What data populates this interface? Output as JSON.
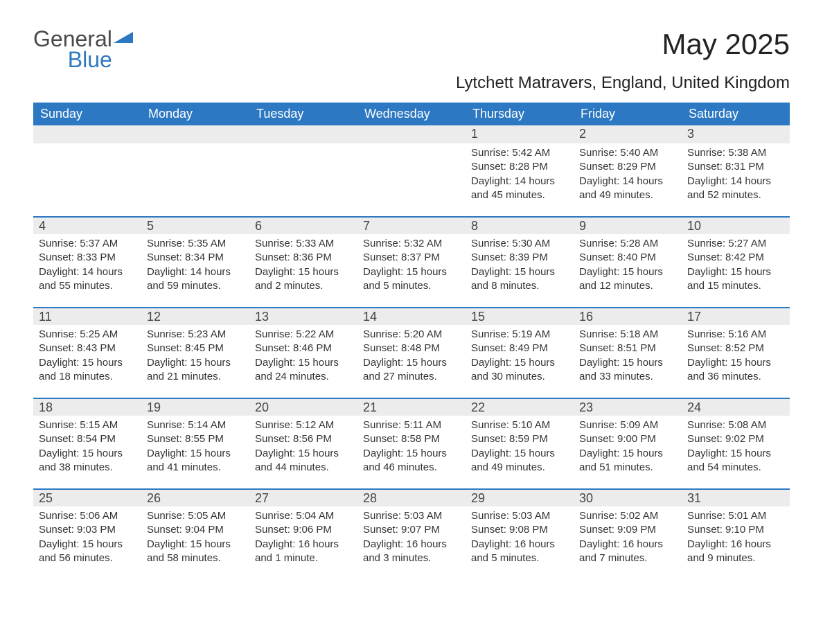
{
  "brand": {
    "word1": "General",
    "word2": "Blue"
  },
  "title": "May 2025",
  "location": "Lytchett Matravers, England, United Kingdom",
  "colors": {
    "header_bg": "#2d78c2",
    "header_text": "#ffffff",
    "band_bg": "#ececec",
    "band_border": "#2d78c2",
    "body_text": "#333333",
    "page_bg": "#ffffff"
  },
  "day_headers": [
    "Sunday",
    "Monday",
    "Tuesday",
    "Wednesday",
    "Thursday",
    "Friday",
    "Saturday"
  ],
  "labels": {
    "sunrise": "Sunrise:",
    "sunset": "Sunset:",
    "daylight": "Daylight:"
  },
  "weeks": [
    [
      null,
      null,
      null,
      null,
      {
        "n": "1",
        "sunrise": "5:42 AM",
        "sunset": "8:28 PM",
        "daylight": "14 hours and 45 minutes."
      },
      {
        "n": "2",
        "sunrise": "5:40 AM",
        "sunset": "8:29 PM",
        "daylight": "14 hours and 49 minutes."
      },
      {
        "n": "3",
        "sunrise": "5:38 AM",
        "sunset": "8:31 PM",
        "daylight": "14 hours and 52 minutes."
      }
    ],
    [
      {
        "n": "4",
        "sunrise": "5:37 AM",
        "sunset": "8:33 PM",
        "daylight": "14 hours and 55 minutes."
      },
      {
        "n": "5",
        "sunrise": "5:35 AM",
        "sunset": "8:34 PM",
        "daylight": "14 hours and 59 minutes."
      },
      {
        "n": "6",
        "sunrise": "5:33 AM",
        "sunset": "8:36 PM",
        "daylight": "15 hours and 2 minutes."
      },
      {
        "n": "7",
        "sunrise": "5:32 AM",
        "sunset": "8:37 PM",
        "daylight": "15 hours and 5 minutes."
      },
      {
        "n": "8",
        "sunrise": "5:30 AM",
        "sunset": "8:39 PM",
        "daylight": "15 hours and 8 minutes."
      },
      {
        "n": "9",
        "sunrise": "5:28 AM",
        "sunset": "8:40 PM",
        "daylight": "15 hours and 12 minutes."
      },
      {
        "n": "10",
        "sunrise": "5:27 AM",
        "sunset": "8:42 PM",
        "daylight": "15 hours and 15 minutes."
      }
    ],
    [
      {
        "n": "11",
        "sunrise": "5:25 AM",
        "sunset": "8:43 PM",
        "daylight": "15 hours and 18 minutes."
      },
      {
        "n": "12",
        "sunrise": "5:23 AM",
        "sunset": "8:45 PM",
        "daylight": "15 hours and 21 minutes."
      },
      {
        "n": "13",
        "sunrise": "5:22 AM",
        "sunset": "8:46 PM",
        "daylight": "15 hours and 24 minutes."
      },
      {
        "n": "14",
        "sunrise": "5:20 AM",
        "sunset": "8:48 PM",
        "daylight": "15 hours and 27 minutes."
      },
      {
        "n": "15",
        "sunrise": "5:19 AM",
        "sunset": "8:49 PM",
        "daylight": "15 hours and 30 minutes."
      },
      {
        "n": "16",
        "sunrise": "5:18 AM",
        "sunset": "8:51 PM",
        "daylight": "15 hours and 33 minutes."
      },
      {
        "n": "17",
        "sunrise": "5:16 AM",
        "sunset": "8:52 PM",
        "daylight": "15 hours and 36 minutes."
      }
    ],
    [
      {
        "n": "18",
        "sunrise": "5:15 AM",
        "sunset": "8:54 PM",
        "daylight": "15 hours and 38 minutes."
      },
      {
        "n": "19",
        "sunrise": "5:14 AM",
        "sunset": "8:55 PM",
        "daylight": "15 hours and 41 minutes."
      },
      {
        "n": "20",
        "sunrise": "5:12 AM",
        "sunset": "8:56 PM",
        "daylight": "15 hours and 44 minutes."
      },
      {
        "n": "21",
        "sunrise": "5:11 AM",
        "sunset": "8:58 PM",
        "daylight": "15 hours and 46 minutes."
      },
      {
        "n": "22",
        "sunrise": "5:10 AM",
        "sunset": "8:59 PM",
        "daylight": "15 hours and 49 minutes."
      },
      {
        "n": "23",
        "sunrise": "5:09 AM",
        "sunset": "9:00 PM",
        "daylight": "15 hours and 51 minutes."
      },
      {
        "n": "24",
        "sunrise": "5:08 AM",
        "sunset": "9:02 PM",
        "daylight": "15 hours and 54 minutes."
      }
    ],
    [
      {
        "n": "25",
        "sunrise": "5:06 AM",
        "sunset": "9:03 PM",
        "daylight": "15 hours and 56 minutes."
      },
      {
        "n": "26",
        "sunrise": "5:05 AM",
        "sunset": "9:04 PM",
        "daylight": "15 hours and 58 minutes."
      },
      {
        "n": "27",
        "sunrise": "5:04 AM",
        "sunset": "9:06 PM",
        "daylight": "16 hours and 1 minute."
      },
      {
        "n": "28",
        "sunrise": "5:03 AM",
        "sunset": "9:07 PM",
        "daylight": "16 hours and 3 minutes."
      },
      {
        "n": "29",
        "sunrise": "5:03 AM",
        "sunset": "9:08 PM",
        "daylight": "16 hours and 5 minutes."
      },
      {
        "n": "30",
        "sunrise": "5:02 AM",
        "sunset": "9:09 PM",
        "daylight": "16 hours and 7 minutes."
      },
      {
        "n": "31",
        "sunrise": "5:01 AM",
        "sunset": "9:10 PM",
        "daylight": "16 hours and 9 minutes."
      }
    ]
  ]
}
